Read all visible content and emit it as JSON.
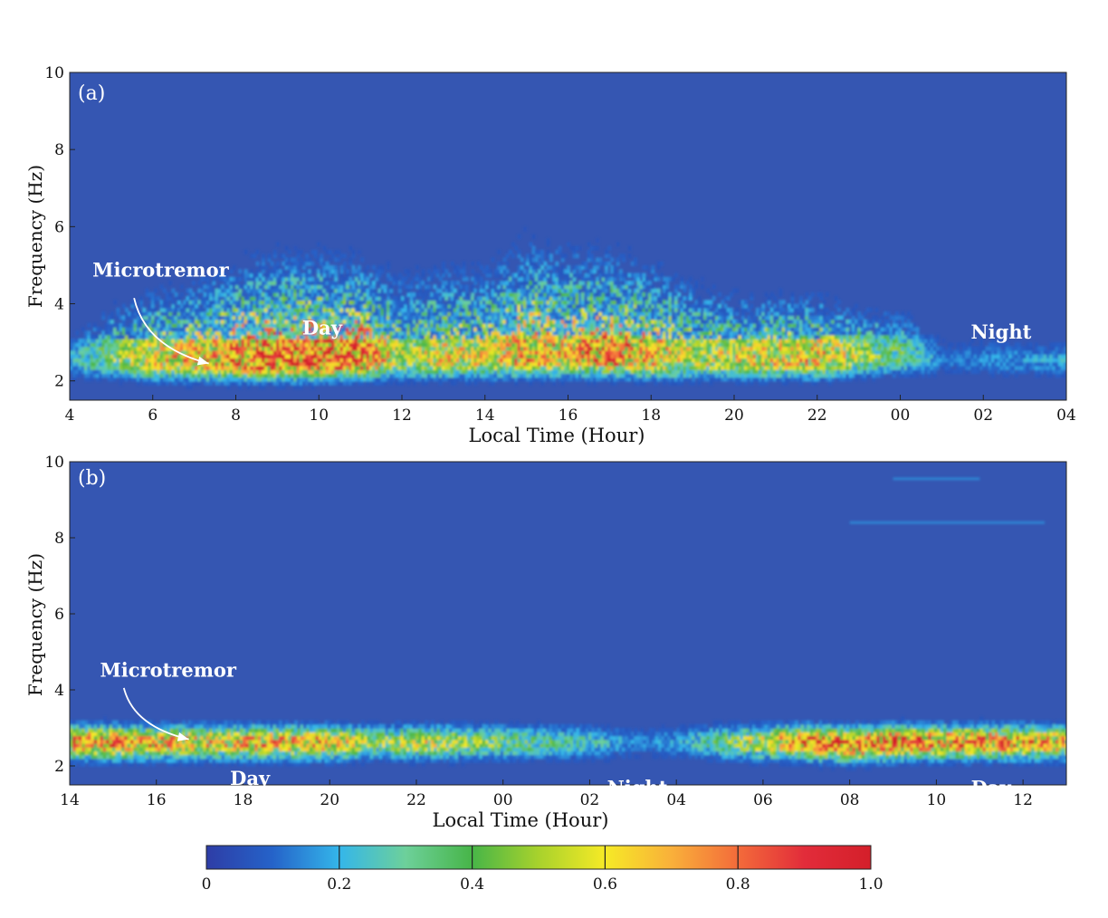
{
  "chart_data": [
    {
      "type": "heatmap",
      "panel_label": "(a)",
      "xlabel": "Local Time (Hour)",
      "ylabel": "Frequency (Hz)",
      "x_range_hours": [
        0,
        24
      ],
      "ylim": [
        1.5,
        10
      ],
      "x_tick_labels": [
        "4",
        "6",
        "8",
        "10",
        "12",
        "14",
        "16",
        "18",
        "20",
        "22",
        "00",
        "02",
        "04"
      ],
      "y_tick_values": [
        2,
        4,
        6,
        8,
        10
      ],
      "y_tick_labels": [
        "2",
        "4",
        "6",
        "8",
        "10"
      ],
      "annotations": [
        {
          "text": "Microtremor",
          "x_hour": 0.55,
          "freq": 4.7
        },
        {
          "text": "Day",
          "x_hour": 5.6,
          "freq": 3.2
        },
        {
          "text": "Night",
          "x_hour": 21.7,
          "freq": 3.1
        }
      ],
      "arrow": {
        "from": [
          1.55,
          4.15
        ],
        "to": [
          3.35,
          2.45
        ]
      },
      "activity": [
        {
          "x": 0.0,
          "center": 2.5,
          "value": 0.22,
          "spread": 0.8
        },
        {
          "x": 1.0,
          "center": 2.5,
          "value": 0.45,
          "spread": 1.6
        },
        {
          "x": 2.0,
          "center": 2.45,
          "value": 0.62,
          "spread": 2.0
        },
        {
          "x": 3.0,
          "center": 2.45,
          "value": 0.7,
          "spread": 2.2
        },
        {
          "x": 4.0,
          "center": 2.45,
          "value": 0.85,
          "spread": 2.6
        },
        {
          "x": 5.0,
          "center": 2.45,
          "value": 0.92,
          "spread": 2.8
        },
        {
          "x": 6.0,
          "center": 2.45,
          "value": 0.92,
          "spread": 2.8
        },
        {
          "x": 7.0,
          "center": 2.5,
          "value": 0.9,
          "spread": 2.6
        },
        {
          "x": 8.0,
          "center": 2.5,
          "value": 0.5,
          "spread": 2.4
        },
        {
          "x": 9.0,
          "center": 2.5,
          "value": 0.62,
          "spread": 2.6
        },
        {
          "x": 10.0,
          "center": 2.5,
          "value": 0.6,
          "spread": 2.6
        },
        {
          "x": 11.0,
          "center": 2.55,
          "value": 0.75,
          "spread": 3.2
        },
        {
          "x": 12.0,
          "center": 2.55,
          "value": 0.7,
          "spread": 3.0
        },
        {
          "x": 13.0,
          "center": 2.55,
          "value": 0.82,
          "spread": 2.8
        },
        {
          "x": 14.0,
          "center": 2.5,
          "value": 0.72,
          "spread": 2.6
        },
        {
          "x": 15.0,
          "center": 2.5,
          "value": 0.55,
          "spread": 2.2
        },
        {
          "x": 16.0,
          "center": 2.5,
          "value": 0.62,
          "spread": 1.8
        },
        {
          "x": 17.0,
          "center": 2.5,
          "value": 0.65,
          "spread": 1.8
        },
        {
          "x": 18.0,
          "center": 2.5,
          "value": 0.7,
          "spread": 1.8
        },
        {
          "x": 19.0,
          "center": 2.55,
          "value": 0.5,
          "spread": 1.4
        },
        {
          "x": 20.0,
          "center": 2.6,
          "value": 0.38,
          "spread": 1.4
        },
        {
          "x": 21.0,
          "center": 2.5,
          "value": 0.12,
          "spread": 0.8
        },
        {
          "x": 22.0,
          "center": 2.5,
          "value": 0.15,
          "spread": 0.8
        },
        {
          "x": 23.0,
          "center": 2.5,
          "value": 0.18,
          "spread": 0.6
        },
        {
          "x": 24.0,
          "center": 2.5,
          "value": 0.2,
          "spread": 0.6
        }
      ]
    },
    {
      "type": "heatmap",
      "panel_label": "(b)",
      "xlabel": "Local Time (Hour)",
      "ylabel": "Frequency (Hz)",
      "x_range_hours": [
        0,
        23
      ],
      "ylim": [
        1.5,
        10
      ],
      "x_tick_labels": [
        "14",
        "16",
        "18",
        "20",
        "22",
        "00",
        "02",
        "04",
        "06",
        "08",
        "10",
        "12"
      ],
      "y_tick_values": [
        2,
        4,
        6,
        8,
        10
      ],
      "y_tick_labels": [
        "2",
        "4",
        "6",
        "8",
        "10"
      ],
      "annotations": [
        {
          "text": "Microtremor",
          "x_hour": 0.7,
          "freq": 4.35
        },
        {
          "text": "Day",
          "x_hour": 3.7,
          "freq": 1.5
        },
        {
          "text": "Night",
          "x_hour": 12.4,
          "freq": 1.25
        },
        {
          "text": "Day",
          "x_hour": 20.8,
          "freq": 1.25
        }
      ],
      "arrow": {
        "from": [
          1.25,
          4.05
        ],
        "to": [
          2.75,
          2.7
        ]
      },
      "activity": [
        {
          "x": 0.0,
          "center": 2.6,
          "value": 0.8,
          "spread": 0.45
        },
        {
          "x": 1.0,
          "center": 2.6,
          "value": 0.85,
          "spread": 0.45
        },
        {
          "x": 2.0,
          "center": 2.6,
          "value": 0.75,
          "spread": 0.45
        },
        {
          "x": 3.0,
          "center": 2.6,
          "value": 0.7,
          "spread": 0.45
        },
        {
          "x": 4.0,
          "center": 2.6,
          "value": 0.72,
          "spread": 0.45
        },
        {
          "x": 5.0,
          "center": 2.6,
          "value": 0.75,
          "spread": 0.45
        },
        {
          "x": 6.0,
          "center": 2.6,
          "value": 0.72,
          "spread": 0.45
        },
        {
          "x": 7.0,
          "center": 2.6,
          "value": 0.45,
          "spread": 0.4
        },
        {
          "x": 8.0,
          "center": 2.6,
          "value": 0.6,
          "spread": 0.4
        },
        {
          "x": 9.0,
          "center": 2.6,
          "value": 0.5,
          "spread": 0.4
        },
        {
          "x": 10.0,
          "center": 2.6,
          "value": 0.42,
          "spread": 0.4
        },
        {
          "x": 11.0,
          "center": 2.6,
          "value": 0.35,
          "spread": 0.35
        },
        {
          "x": 12.0,
          "center": 2.6,
          "value": 0.28,
          "spread": 0.3
        },
        {
          "x": 13.0,
          "center": 2.6,
          "value": 0.15,
          "spread": 0.3
        },
        {
          "x": 14.0,
          "center": 2.6,
          "value": 0.18,
          "spread": 0.3
        },
        {
          "x": 15.0,
          "center": 2.6,
          "value": 0.4,
          "spread": 0.4
        },
        {
          "x": 16.0,
          "center": 2.6,
          "value": 0.62,
          "spread": 0.45
        },
        {
          "x": 17.0,
          "center": 2.6,
          "value": 0.9,
          "spread": 0.5
        },
        {
          "x": 18.0,
          "center": 2.55,
          "value": 0.98,
          "spread": 0.5
        },
        {
          "x": 19.0,
          "center": 2.6,
          "value": 0.92,
          "spread": 0.5
        },
        {
          "x": 20.0,
          "center": 2.6,
          "value": 0.85,
          "spread": 0.5
        },
        {
          "x": 21.0,
          "center": 2.6,
          "value": 0.85,
          "spread": 0.5
        },
        {
          "x": 22.0,
          "center": 2.6,
          "value": 0.8,
          "spread": 0.5
        },
        {
          "x": 23.0,
          "center": 2.6,
          "value": 0.7,
          "spread": 0.5
        }
      ],
      "spectral_lines": [
        {
          "freq": 9.55,
          "x_from": 19.0,
          "x_to": 21.0
        },
        {
          "freq": 8.4,
          "x_from": 18.0,
          "x_to": 22.5
        }
      ]
    }
  ],
  "colorbar": {
    "min": 0,
    "max": 1.0,
    "tick_values": [
      0,
      0.2,
      0.4,
      0.6,
      0.8,
      1.0
    ],
    "tick_labels": [
      "0",
      "0.2",
      "0.4",
      "0.6",
      "0.8",
      "1.0"
    ],
    "colors": [
      "#2e3da6",
      "#2563c9",
      "#34b6ea",
      "#6dd09a",
      "#47b548",
      "#a8d22c",
      "#f6ea26",
      "#f9b03a",
      "#f36b3a",
      "#e22c3a",
      "#d41f2a"
    ]
  },
  "colors": {
    "background": "#3556b2",
    "annotation": "#ffffff",
    "axis": "#111111"
  }
}
